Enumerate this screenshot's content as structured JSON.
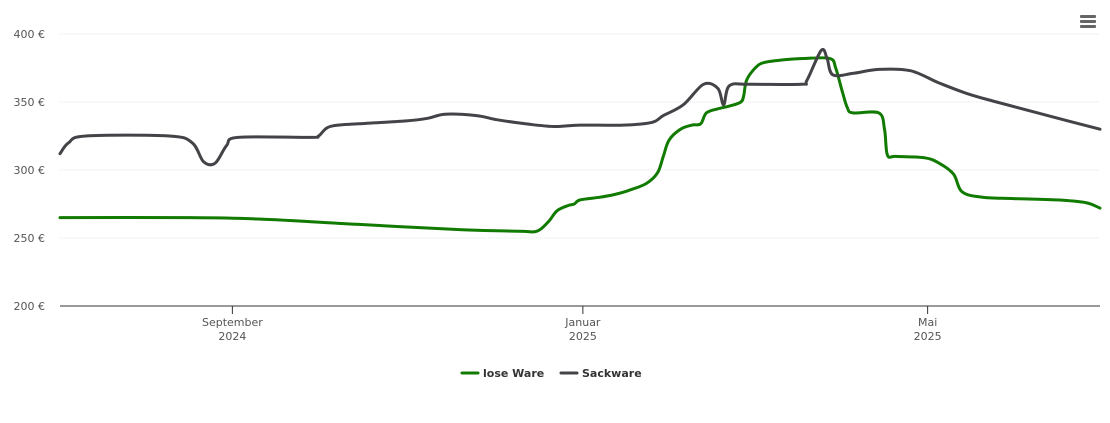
{
  "chart_data": {
    "type": "line",
    "y_ticks": [
      {
        "value": 200,
        "label": "200 €"
      },
      {
        "value": 250,
        "label": "250 €"
      },
      {
        "value": 300,
        "label": "300 €"
      },
      {
        "value": 350,
        "label": "350 €"
      },
      {
        "value": 400,
        "label": "400 €"
      }
    ],
    "ylim": [
      200,
      400
    ],
    "xlim": [
      "2024-07-03",
      "2025-06-30"
    ],
    "x_ticks": [
      {
        "date": "2024-09-01",
        "month": "September",
        "year": "2024"
      },
      {
        "date": "2025-01-01",
        "month": "Januar",
        "year": "2025"
      },
      {
        "date": "2025-05-01",
        "month": "Mai",
        "year": "2025"
      }
    ],
    "grid": true,
    "legend_position": "bottom-center",
    "series": [
      {
        "name": "lose Ware",
        "color": "#117A00",
        "points": [
          [
            "2024-07-03",
            265
          ],
          [
            "2024-08-15",
            265
          ],
          [
            "2024-09-10",
            264
          ],
          [
            "2024-10-15",
            260
          ],
          [
            "2024-11-20",
            256
          ],
          [
            "2024-12-10",
            255
          ],
          [
            "2024-12-16",
            255
          ],
          [
            "2024-12-20",
            262
          ],
          [
            "2024-12-23",
            270
          ],
          [
            "2024-12-27",
            274
          ],
          [
            "2024-12-29",
            275
          ],
          [
            "2024-12-31",
            278
          ],
          [
            "2025-01-07",
            280
          ],
          [
            "2025-01-12",
            282
          ],
          [
            "2025-01-17",
            285
          ],
          [
            "2025-01-23",
            290
          ],
          [
            "2025-01-27",
            298
          ],
          [
            "2025-01-29",
            310
          ],
          [
            "2025-01-31",
            322
          ],
          [
            "2025-02-04",
            330
          ],
          [
            "2025-02-08",
            333
          ],
          [
            "2025-02-11",
            334
          ],
          [
            "2025-02-13",
            342
          ],
          [
            "2025-02-17",
            345
          ],
          [
            "2025-02-21",
            347
          ],
          [
            "2025-02-25",
            350
          ],
          [
            "2025-02-26",
            355
          ],
          [
            "2025-02-27",
            366
          ],
          [
            "2025-03-02",
            375
          ],
          [
            "2025-03-05",
            379
          ],
          [
            "2025-03-12",
            381
          ],
          [
            "2025-03-19",
            382
          ],
          [
            "2025-03-28",
            382
          ],
          [
            "2025-03-30",
            375
          ],
          [
            "2025-04-01",
            360
          ],
          [
            "2025-04-03",
            346
          ],
          [
            "2025-04-05",
            342
          ],
          [
            "2025-04-14",
            342
          ],
          [
            "2025-04-16",
            330
          ],
          [
            "2025-04-17",
            311
          ],
          [
            "2025-04-20",
            310
          ],
          [
            "2025-04-30",
            309
          ],
          [
            "2025-05-05",
            305
          ],
          [
            "2025-05-10",
            297
          ],
          [
            "2025-05-13",
            284
          ],
          [
            "2025-05-20",
            280
          ],
          [
            "2025-05-31",
            279
          ],
          [
            "2025-06-15",
            278
          ],
          [
            "2025-06-25",
            276
          ],
          [
            "2025-06-30",
            272
          ]
        ]
      },
      {
        "name": "Sackware",
        "color": "#434348",
        "points": [
          [
            "2024-07-03",
            312
          ],
          [
            "2024-07-06",
            320
          ],
          [
            "2024-07-12",
            325
          ],
          [
            "2024-08-10",
            325
          ],
          [
            "2024-08-18",
            320
          ],
          [
            "2024-08-22",
            306
          ],
          [
            "2024-08-26",
            305
          ],
          [
            "2024-08-30",
            318
          ],
          [
            "2024-09-03",
            324
          ],
          [
            "2024-09-28",
            324
          ],
          [
            "2024-10-01",
            325
          ],
          [
            "2024-10-05",
            332
          ],
          [
            "2024-10-15",
            334
          ],
          [
            "2024-10-31",
            336
          ],
          [
            "2024-11-08",
            338
          ],
          [
            "2024-11-14",
            341
          ],
          [
            "2024-11-25",
            340
          ],
          [
            "2024-12-02",
            337
          ],
          [
            "2024-12-12",
            334
          ],
          [
            "2024-12-22",
            332
          ],
          [
            "2024-12-31",
            333
          ],
          [
            "2025-01-15",
            333
          ],
          [
            "2025-01-25",
            335
          ],
          [
            "2025-01-29",
            340
          ],
          [
            "2025-02-05",
            348
          ],
          [
            "2025-02-12",
            363
          ],
          [
            "2025-02-17",
            360
          ],
          [
            "2025-02-19",
            348
          ],
          [
            "2025-02-21",
            362
          ],
          [
            "2025-02-28",
            363
          ],
          [
            "2025-03-18",
            363
          ],
          [
            "2025-03-20",
            366
          ],
          [
            "2025-03-25",
            388
          ],
          [
            "2025-03-27",
            382
          ],
          [
            "2025-03-29",
            370
          ],
          [
            "2025-04-05",
            371
          ],
          [
            "2025-04-14",
            374
          ],
          [
            "2025-04-25",
            373
          ],
          [
            "2025-05-05",
            364
          ],
          [
            "2025-05-15",
            356
          ],
          [
            "2025-05-25",
            350
          ],
          [
            "2025-06-10",
            341
          ],
          [
            "2025-06-30",
            330
          ]
        ]
      }
    ]
  },
  "legend": {
    "series_1_label": "lose Ware",
    "series_2_label": "Sackware"
  },
  "menu_icon_name": "hamburger-menu-icon"
}
